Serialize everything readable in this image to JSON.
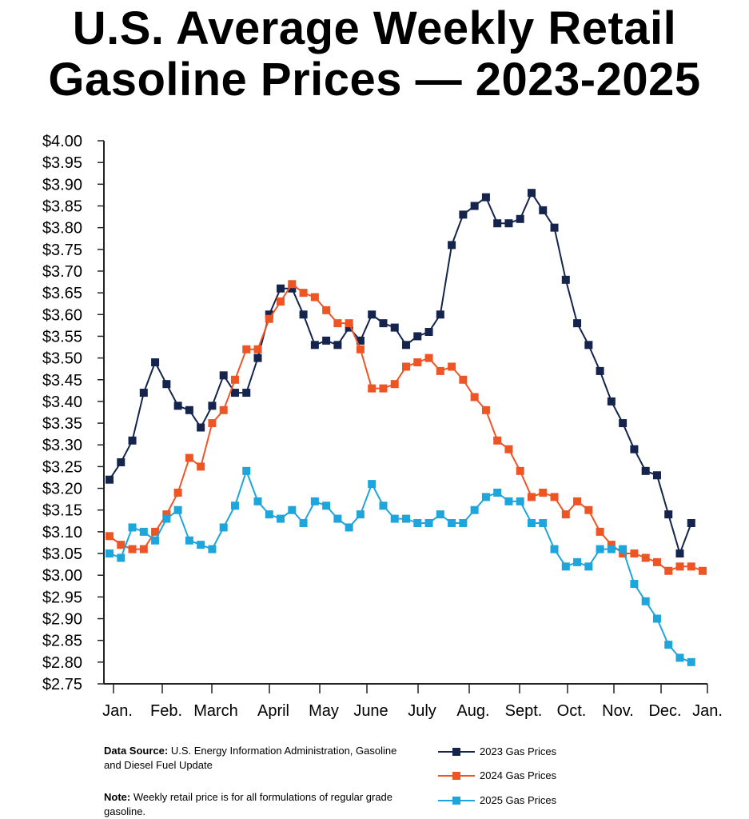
{
  "title_lines": [
    "U.S. Average Weekly Retail",
    "Gasoline Prices — 2023-2025"
  ],
  "chart_data": {
    "type": "line",
    "title": "U.S. Average Weekly Retail Gasoline Prices — 2023-2025",
    "xlabel": "",
    "ylabel": "",
    "ylim": [
      2.75,
      4.0
    ],
    "y_ticks": [
      "$4.00",
      "$3.95",
      "$3.90",
      "$3.85",
      "$3.80",
      "$3.75",
      "$3.70",
      "$3.65",
      "$3.60",
      "$3.55",
      "$3.50",
      "$3.45",
      "$3.40",
      "$3.35",
      "$3.30",
      "$3.25",
      "$3.20",
      "$3.15",
      "$3.10",
      "$3.05",
      "$3.00",
      "$2.95",
      "$2.90",
      "$2.85",
      "$2.80",
      "$2.75"
    ],
    "x_ticks": [
      "Jan.",
      "Feb.",
      "March",
      "April",
      "May",
      "June",
      "July",
      "Aug.",
      "Sept.",
      "Oct.",
      "Nov.",
      "Dec.",
      "Jan."
    ],
    "x_unit": "week of year",
    "grid": false,
    "legend_position": "bottom-right",
    "series": [
      {
        "name": "2023 Gas Prices",
        "color": "#14244d",
        "values": [
          3.22,
          3.26,
          3.31,
          3.42,
          3.49,
          3.44,
          3.39,
          3.38,
          3.34,
          3.39,
          3.46,
          3.42,
          3.42,
          3.5,
          3.6,
          3.66,
          3.66,
          3.6,
          3.53,
          3.54,
          3.53,
          3.57,
          3.54,
          3.6,
          3.58,
          3.57,
          3.53,
          3.55,
          3.56,
          3.6,
          3.76,
          3.83,
          3.85,
          3.87,
          3.81,
          3.81,
          3.82,
          3.88,
          3.84,
          3.8,
          3.68,
          3.58,
          3.53,
          3.47,
          3.4,
          3.35,
          3.29,
          3.24,
          3.23,
          3.14,
          3.05,
          3.12
        ]
      },
      {
        "name": "2024 Gas Prices",
        "color": "#ef5425",
        "values": [
          3.09,
          3.07,
          3.06,
          3.06,
          3.1,
          3.14,
          3.19,
          3.27,
          3.25,
          3.35,
          3.38,
          3.45,
          3.52,
          3.52,
          3.59,
          3.63,
          3.67,
          3.65,
          3.64,
          3.61,
          3.58,
          3.58,
          3.52,
          3.43,
          3.43,
          3.44,
          3.48,
          3.49,
          3.5,
          3.47,
          3.48,
          3.45,
          3.41,
          3.38,
          3.31,
          3.29,
          3.24,
          3.18,
          3.19,
          3.18,
          3.14,
          3.17,
          3.15,
          3.1,
          3.07,
          3.05,
          3.05,
          3.04,
          3.03,
          3.01,
          3.02,
          3.02,
          3.01
        ]
      },
      {
        "name": "2025 Gas Prices",
        "color": "#1ea6dc",
        "values": [
          3.05,
          3.04,
          3.11,
          3.1,
          3.08,
          3.13,
          3.15,
          3.08,
          3.07,
          3.06,
          3.11,
          3.16,
          3.24,
          3.17,
          3.14,
          3.13,
          3.15,
          3.12,
          3.17,
          3.16,
          3.13,
          3.11,
          3.14,
          3.21,
          3.16,
          3.13,
          3.13,
          3.12,
          3.12,
          3.14,
          3.12,
          3.12,
          3.15,
          3.18,
          3.19,
          3.17,
          3.17,
          3.12,
          3.12,
          3.06,
          3.02,
          3.03,
          3.02,
          3.06,
          3.06,
          3.06,
          2.98,
          2.94,
          2.9,
          2.84,
          2.81,
          2.8
        ]
      }
    ]
  },
  "notes": {
    "source_label": "Data Source:",
    "source_text": " U.S. Energy Information Administration, Gasoline and Diesel Fuel Update",
    "note_label": "Note:",
    "note_text": " Weekly retail price is for all formulations of regular grade gasoline."
  }
}
